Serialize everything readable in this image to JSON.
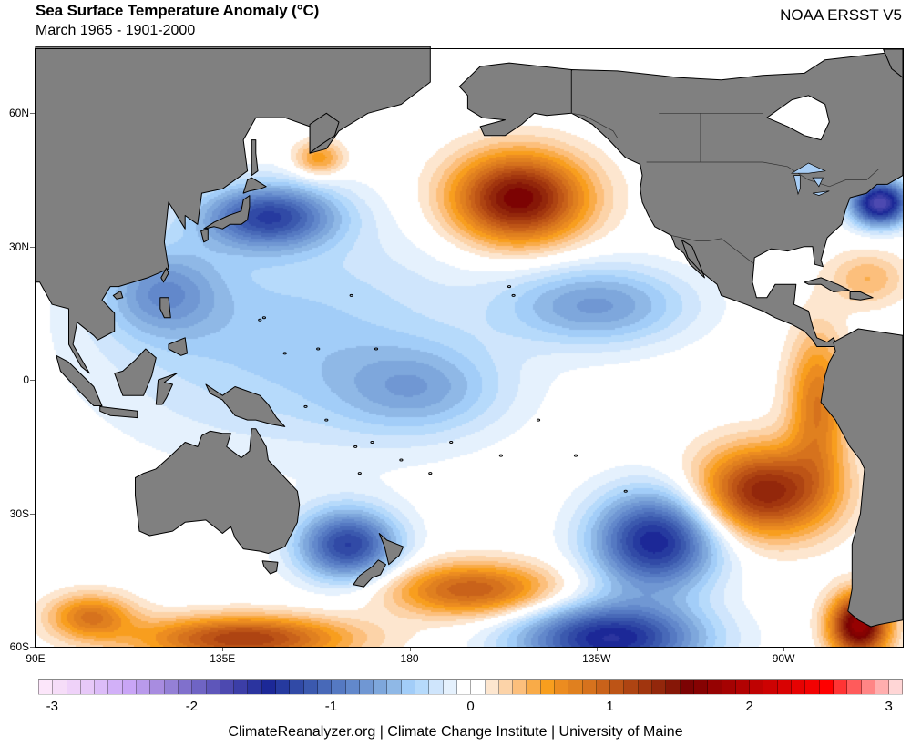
{
  "header": {
    "title": "Sea Surface Temperature Anomaly (°C)",
    "subtitle": "March 1965 - 1901-2000",
    "source": "NOAA ERSST V5"
  },
  "footer": {
    "credit": "ClimateReanalyzer.org | Climate Change Institute | University of Maine"
  },
  "chart_data": {
    "type": "heatmap",
    "title": "Sea Surface Temperature Anomaly (°C)",
    "subtitle": "March 1965 - 1901-2000",
    "dataset": "NOAA ERSST V5",
    "projection": "equirectangular",
    "lon_range_deg_east": [
      90,
      298
    ],
    "lat_range": [
      -60,
      74
    ],
    "x_ticks": [
      {
        "lon": 90,
        "label": "90E"
      },
      {
        "lon": 135,
        "label": "135E"
      },
      {
        "lon": 180,
        "label": "180"
      },
      {
        "lon": 225,
        "label": "135W"
      },
      {
        "lon": 270,
        "label": "90W"
      }
    ],
    "y_ticks": [
      {
        "lat": 60,
        "label": "60N"
      },
      {
        "lat": 30,
        "label": "30N"
      },
      {
        "lat": 0,
        "label": "0"
      },
      {
        "lat": -30,
        "label": "30S"
      },
      {
        "lat": -60,
        "label": "60S"
      }
    ],
    "colorbar": {
      "min": -3.1,
      "max": 3.1,
      "step": 0.1,
      "tick_values": [
        -3,
        -2,
        -1,
        0,
        1,
        2,
        3
      ],
      "tick_labels": [
        "-3",
        "-2",
        "-1",
        "0",
        "1",
        "2",
        "3"
      ],
      "colors": [
        "#fce6fa",
        "#f6ddf8",
        "#efd2f9",
        "#e7c8f8",
        "#dcbcf8",
        "#d2b0f8",
        "#c9a5f6",
        "#b99aeb",
        "#a88ce0",
        "#9480d6",
        "#8070cc",
        "#6f64c4",
        "#5e56ba",
        "#4d49b0",
        "#3c3ea7",
        "#2b349f",
        "#1c2897",
        "#263a9f",
        "#314aa6",
        "#3b59ae",
        "#4869b8",
        "#5579c2",
        "#6288cb",
        "#7097d3",
        "#7ea7dc",
        "#8fb8e6",
        "#a2cdf8",
        "#b6dafb",
        "#cfe5fc",
        "#e5f1fd",
        "#ffffff",
        "#ffffff",
        "#fde6cf",
        "#fcd3a8",
        "#fcbf7c",
        "#f9ab48",
        "#f89e1e",
        "#ec8c20",
        "#e0801f",
        "#d6721d",
        "#c9621a",
        "#bd5416",
        "#ae4412",
        "#a1350e",
        "#93270b",
        "#861707",
        "#7c0303",
        "#860202",
        "#960202",
        "#a50202",
        "#b20202",
        "#bf0202",
        "#cd0202",
        "#d90202",
        "#e60202",
        "#f20202",
        "#ff0000",
        "#ff3434",
        "#ff5b5b",
        "#ff8585",
        "#ffaeae",
        "#ffd6d6"
      ]
    },
    "land_color": "#808080",
    "anomaly_features": [
      {
        "name": "NE Pacific warm core",
        "lon": 206,
        "lat": 41,
        "value": 1.6
      },
      {
        "name": "Kuroshio cold pool",
        "lon": 146,
        "lat": 37,
        "value": -1.2
      },
      {
        "name": "Kamchatka warm spot",
        "lon": 158,
        "lat": 50,
        "value": 0.6
      },
      {
        "name": "US East Coast cold core",
        "lon": 293,
        "lat": 40,
        "value": -1.8
      },
      {
        "name": "Subtropical Atlantic warm",
        "lon": 290,
        "lat": 23,
        "value": 0.4
      },
      {
        "name": "NE tropical Pacific cold",
        "lon": 225,
        "lat": 17,
        "value": -0.7
      },
      {
        "name": "South China Sea cold",
        "lon": 120,
        "lat": 20,
        "value": -0.6
      },
      {
        "name": "Peru coastal warm",
        "lon": 278,
        "lat": -5,
        "value": 0.8
      },
      {
        "name": "SE Pacific warm core",
        "lon": 265,
        "lat": -25,
        "value": 1.4
      },
      {
        "name": "Patagonia warm core",
        "lon": 288,
        "lat": -55,
        "value": 1.8
      },
      {
        "name": "South Pacific cold core",
        "lon": 239,
        "lat": -36,
        "value": -1.5
      },
      {
        "name": "Subantarctic cold",
        "lon": 228,
        "lat": -58,
        "value": -1.5
      },
      {
        "name": "Tasman Sea cold core",
        "lon": 165,
        "lat": -37,
        "value": -1.3
      },
      {
        "name": "South Pacific warm band",
        "lon": 195,
        "lat": -47,
        "value": 1.0
      },
      {
        "name": "Southern Ocean warm core",
        "lon": 140,
        "lat": -58,
        "value": 1.2
      },
      {
        "name": "Southern Indian warm",
        "lon": 103,
        "lat": -53,
        "value": 0.8
      },
      {
        "name": "Central Pacific cool patch",
        "lon": 182,
        "lat": -2,
        "value": -0.5
      }
    ]
  }
}
